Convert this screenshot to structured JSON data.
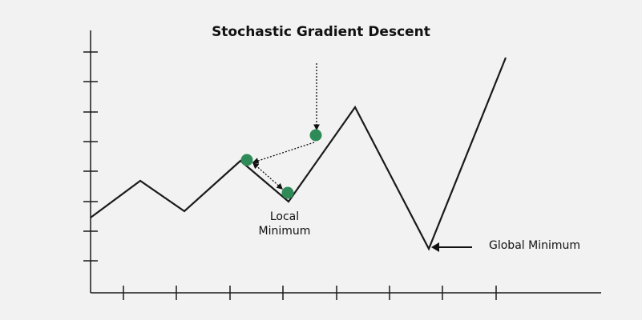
{
  "diagram": {
    "title": "Stochastic Gradient Descent",
    "labels": {
      "local_min_line1": "Local",
      "local_min_line2": "Minimum",
      "global_min": "Global Minimum"
    },
    "colors": {
      "background": "#f2f2f2",
      "curve": "#1a1a1a",
      "point": "#2e8b57",
      "text": "#111111"
    },
    "point_count": 3
  }
}
